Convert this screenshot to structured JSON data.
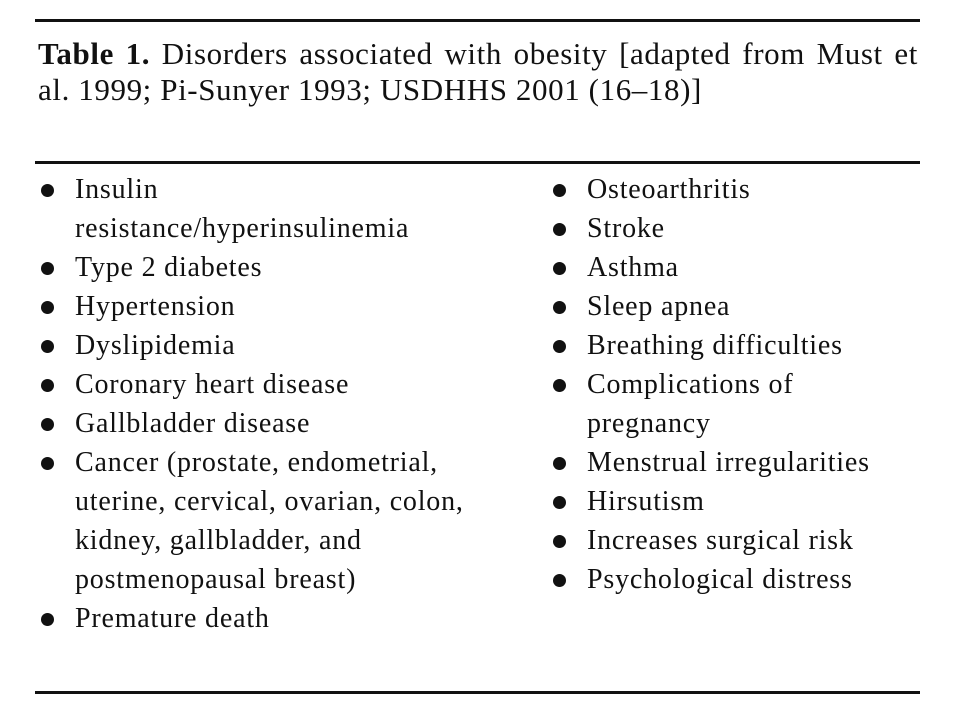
{
  "table": {
    "label": "Table 1.",
    "caption": "Disorders associated with obesity [adapted from Must et al. 1999; Pi-Sunyer 1993; USDHHS 2001 (16–18)]",
    "left_items": [
      "Insulin resistance/hyperinsulinemia",
      "Type 2 diabetes",
      "Hypertension",
      "Dyslipidemia",
      "Coronary heart disease",
      "Gallbladder disease",
      "Cancer (prostate, endometrial, uterine, cervical, ovarian, colon, kidney, gallbladder, and postmenopausal breast)",
      "Premature death"
    ],
    "right_items": [
      "Osteoarthritis",
      "Stroke",
      "Asthma",
      "Sleep apnea",
      "Breathing difficulties",
      "Complications of pregnancy",
      "Menstrual irregularities",
      "Hirsutism",
      "Increases surgical risk",
      "Psychological distress"
    ]
  }
}
